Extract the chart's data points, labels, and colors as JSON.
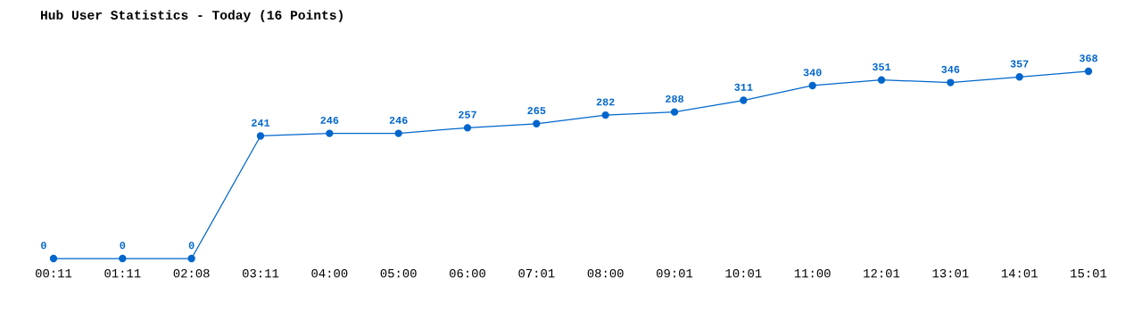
{
  "chart_data": {
    "type": "line",
    "title": "Hub User Statistics - Today (16 Points)",
    "categories": [
      "00:11",
      "01:11",
      "02:08",
      "03:11",
      "04:00",
      "05:00",
      "06:00",
      "07:01",
      "08:00",
      "09:01",
      "10:01",
      "11:00",
      "12:01",
      "13:01",
      "14:01",
      "15:01"
    ],
    "series": [
      {
        "color": "#0066cc",
        "values": [
          0,
          0,
          0,
          241,
          246,
          246,
          257,
          265,
          282,
          288,
          311,
          340,
          351,
          346,
          357,
          368
        ]
      }
    ],
    "data_labels": true,
    "marker": "circle",
    "line_style": "solid",
    "grid": false,
    "legend": false
  }
}
